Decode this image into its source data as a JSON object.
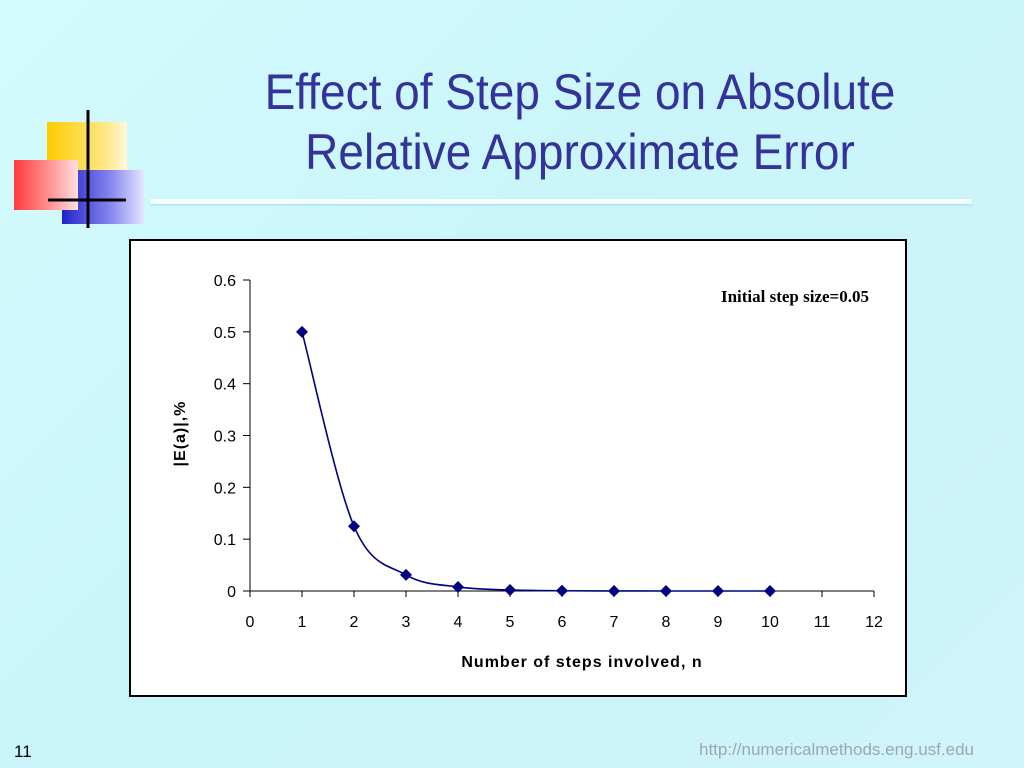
{
  "slide": {
    "title_line1": "Effect of Step Size on Absolute",
    "title_line2": "Relative Approximate Error",
    "number": "11",
    "footer_url": "http://numericalmethods.eng.usf.edu"
  },
  "colors": {
    "title": "#333399",
    "series": "#000080",
    "logo_yellow": "#ffcc00",
    "logo_red": "#ff3333",
    "logo_blue": "#3333cc"
  },
  "chart_data": {
    "type": "line",
    "title": "",
    "xlabel": "Number of steps involved, n",
    "ylabel": "|E(a)|,%",
    "annotation": "Initial step size=0.05",
    "xlim": [
      0,
      12
    ],
    "ylim": [
      0,
      0.6
    ],
    "xticks": [
      0,
      1,
      2,
      3,
      4,
      5,
      6,
      7,
      8,
      9,
      10,
      11,
      12
    ],
    "yticks": [
      0,
      0.1,
      0.2,
      0.3,
      0.4,
      0.5,
      0.6
    ],
    "grid": false,
    "marker": "diamond",
    "smooth": true,
    "series": [
      {
        "x": [
          1,
          2,
          3,
          4,
          5,
          6,
          7,
          8,
          9,
          10
        ],
        "y": [
          0.5,
          0.125,
          0.031,
          0.0078,
          0.002,
          0.0005,
          0.0001,
          0,
          0,
          0
        ]
      }
    ]
  }
}
